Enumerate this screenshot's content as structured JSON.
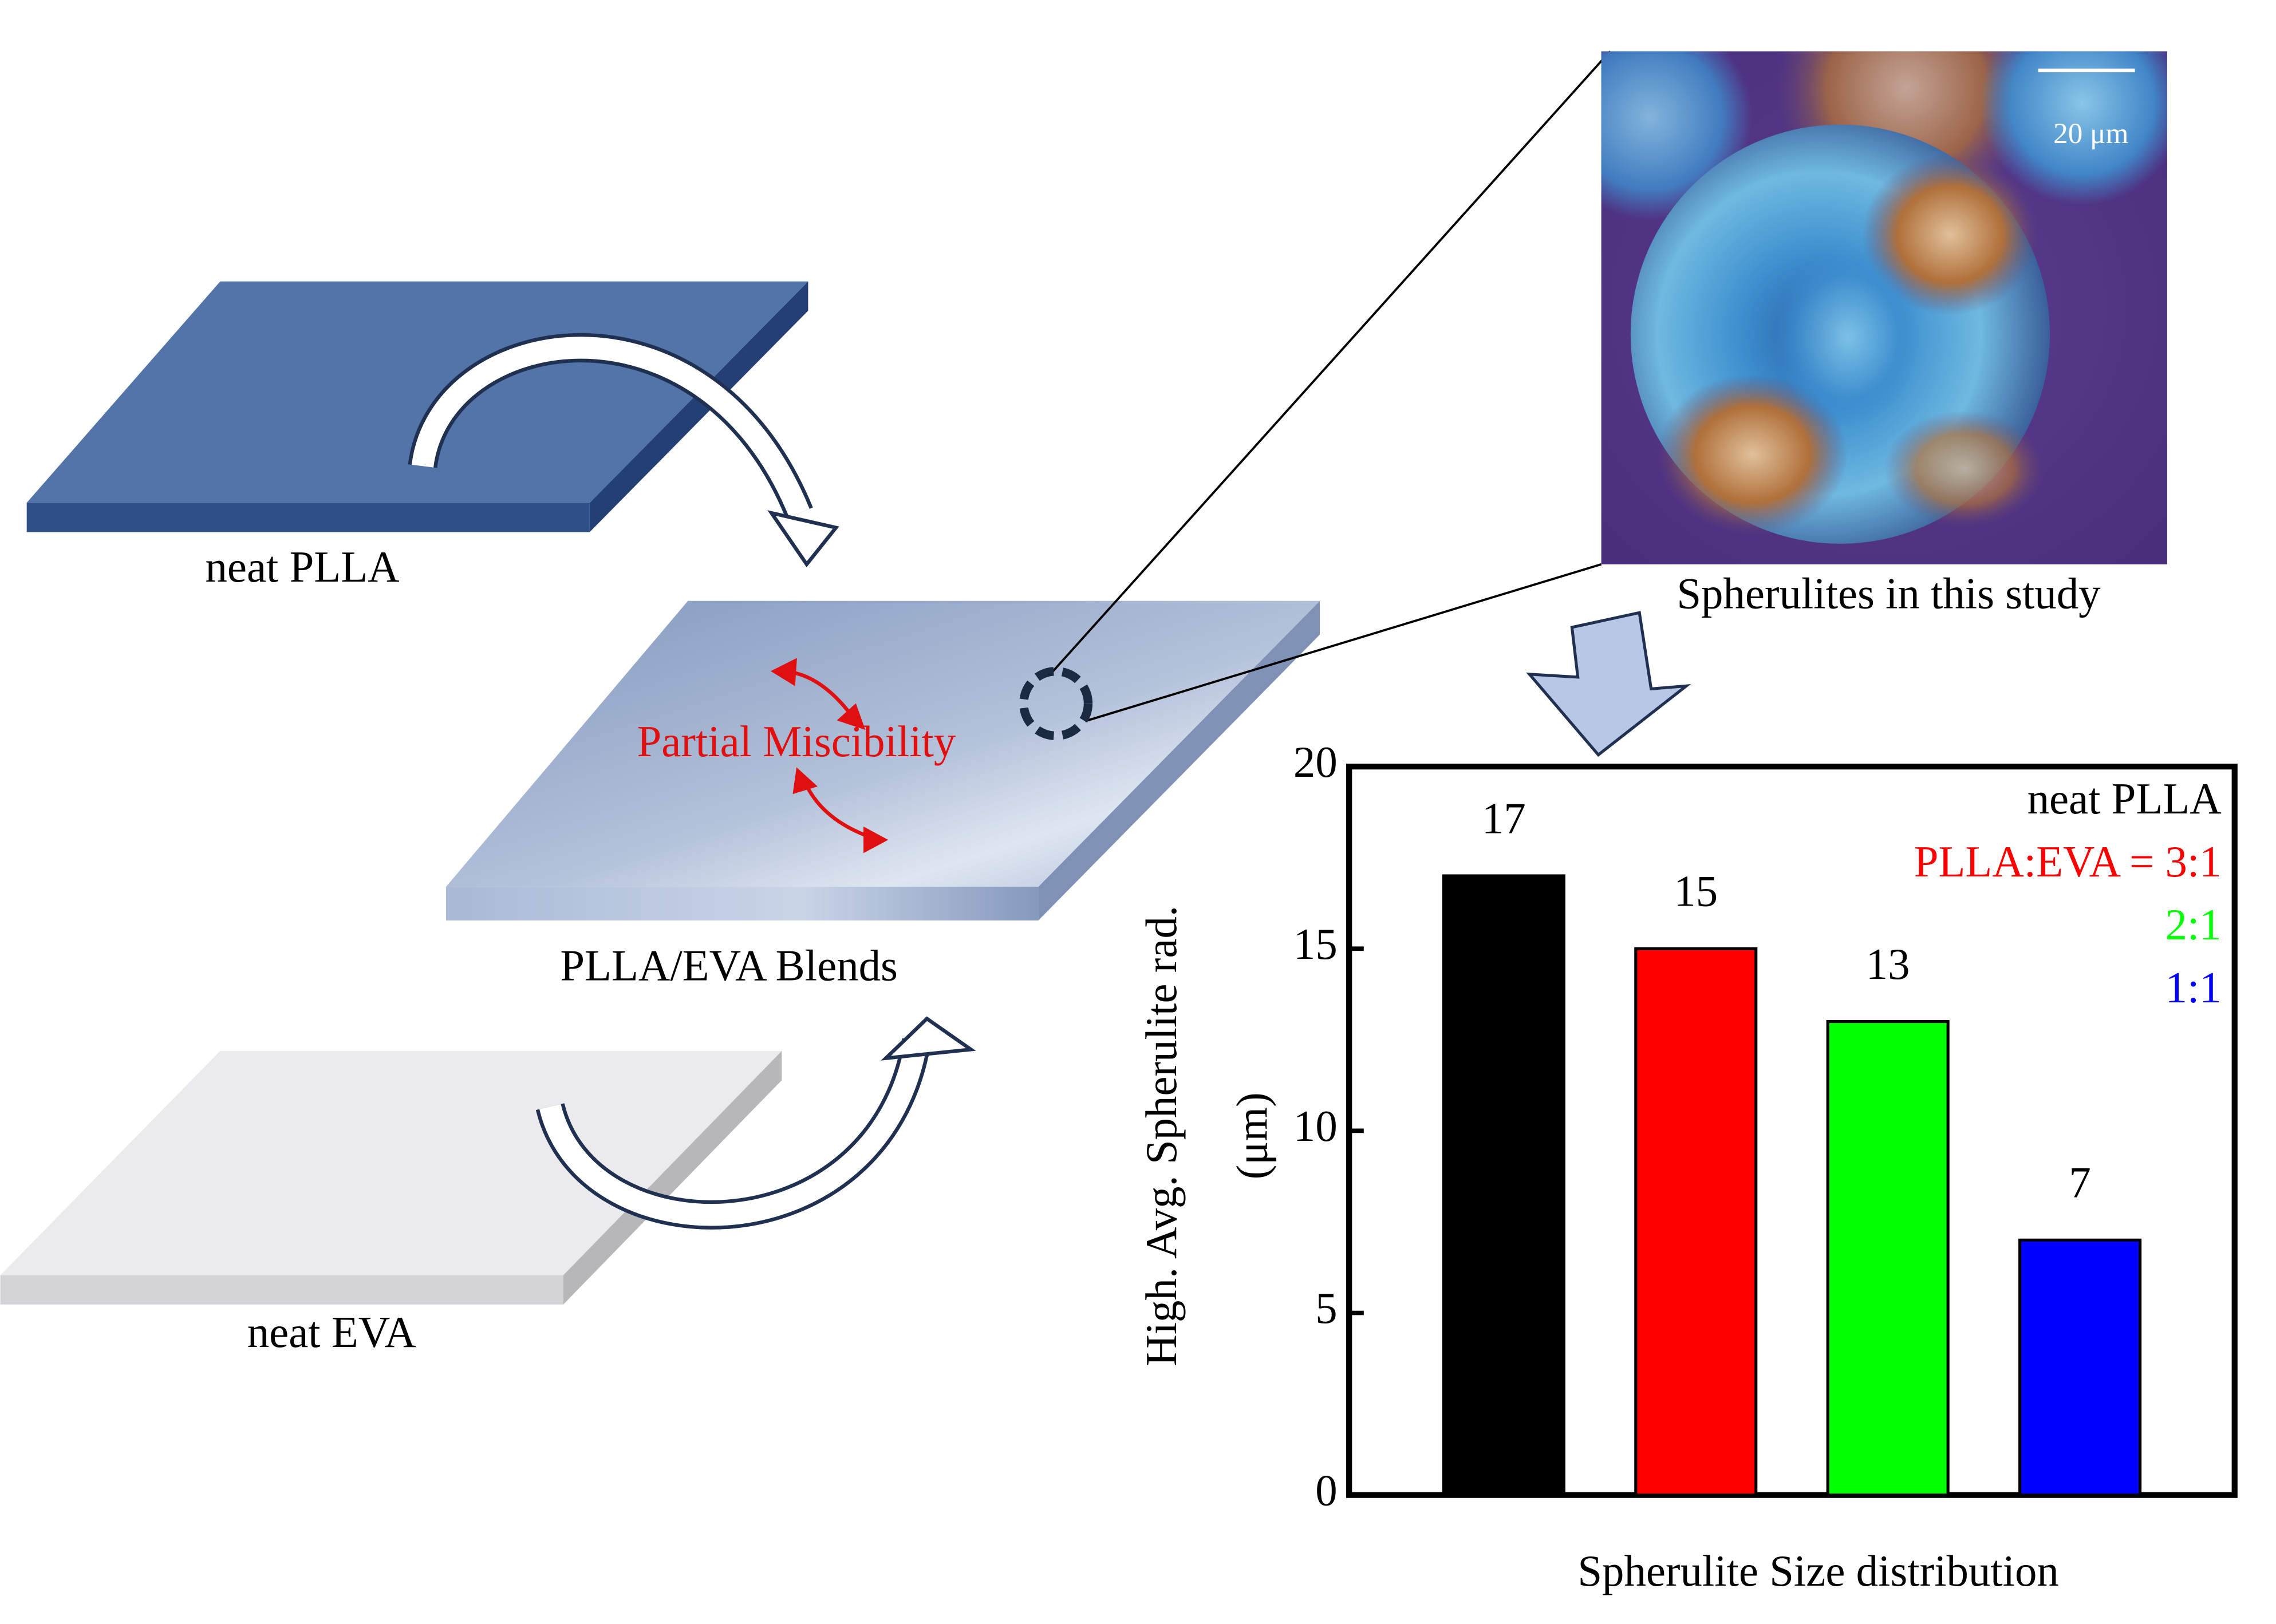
{
  "labels": {
    "plate_top": "neat PLLA",
    "plate_middle": "PLLA/EVA Blends",
    "plate_bottom": "neat EVA",
    "miscibility": "Partial Miscibility",
    "micrograph_caption": "Spherulites in this study",
    "scale_bar": "20 μm"
  },
  "chart_data": {
    "type": "bar",
    "y_label": [
      "High. Avg. Spherulite rad.",
      "(μm)"
    ],
    "x_label": "Spherulite Size distribution",
    "categories": [
      "neat PLLA",
      "PLLA:EVA = 3:1",
      "2:1",
      "1:1"
    ],
    "values": [
      17,
      15,
      13,
      7
    ],
    "colors": [
      "#000000",
      "#ff0000",
      "#00ff00",
      "#0000ff"
    ],
    "ylim": [
      0,
      20
    ],
    "yticks": [
      0,
      5,
      10,
      15,
      20
    ]
  }
}
